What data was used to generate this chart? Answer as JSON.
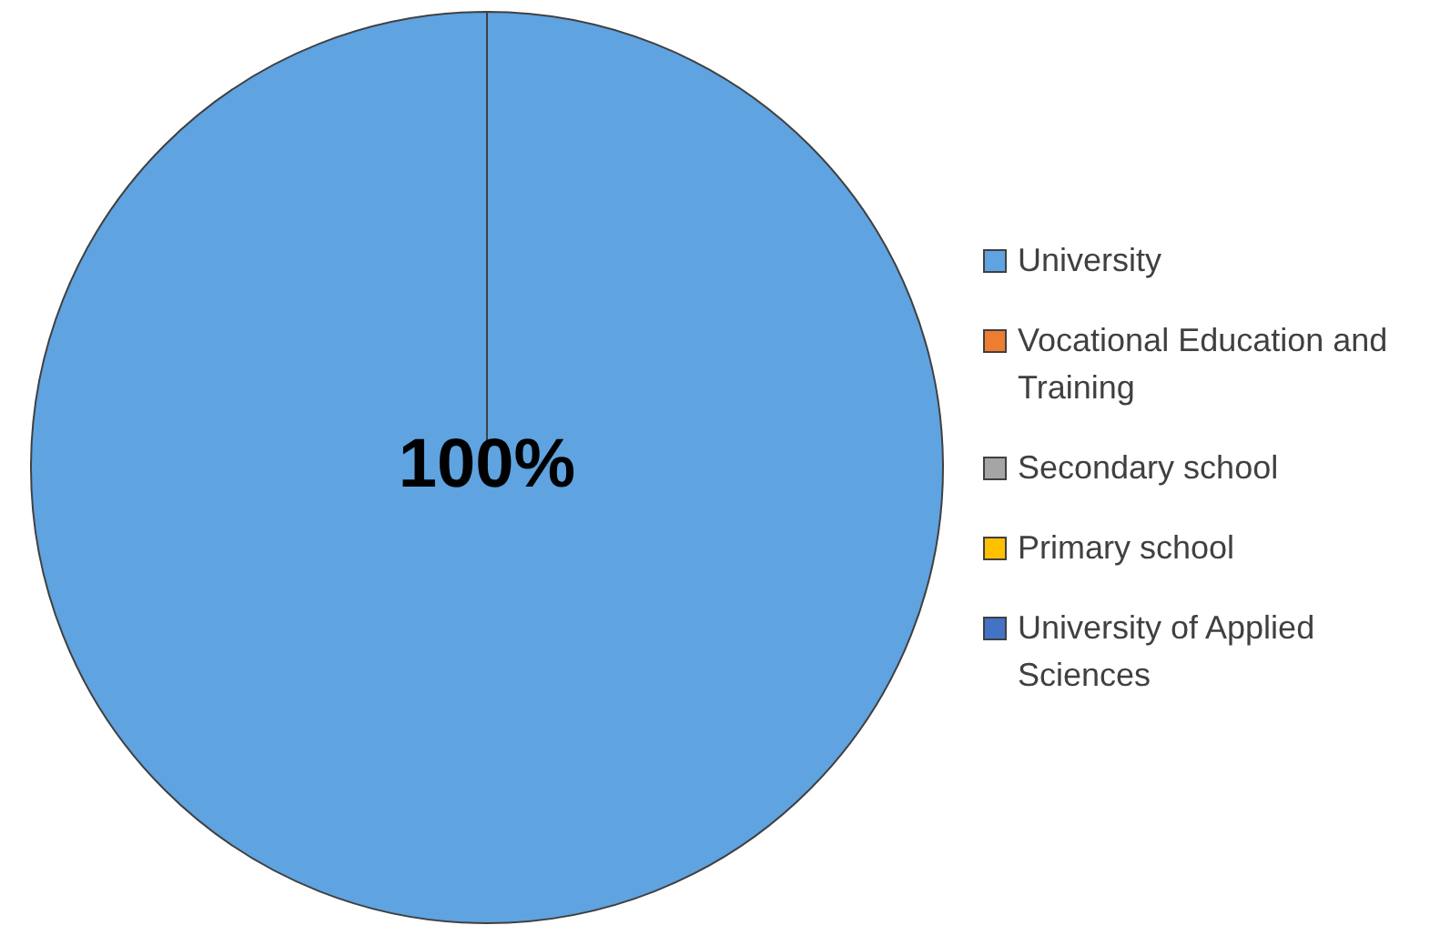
{
  "chart_data": {
    "type": "pie",
    "categories": [
      "University",
      "Vocational Education and Training",
      "Secondary school",
      "Primary school",
      "University of Applied Sciences"
    ],
    "values": [
      100,
      0,
      0,
      0,
      0
    ],
    "colors": [
      "#5fa3e0",
      "#ed7d31",
      "#a5a5a5",
      "#ffc000",
      "#4472c4"
    ],
    "value_labels": [
      "100%",
      null,
      null,
      null,
      null
    ],
    "legend": "right"
  }
}
